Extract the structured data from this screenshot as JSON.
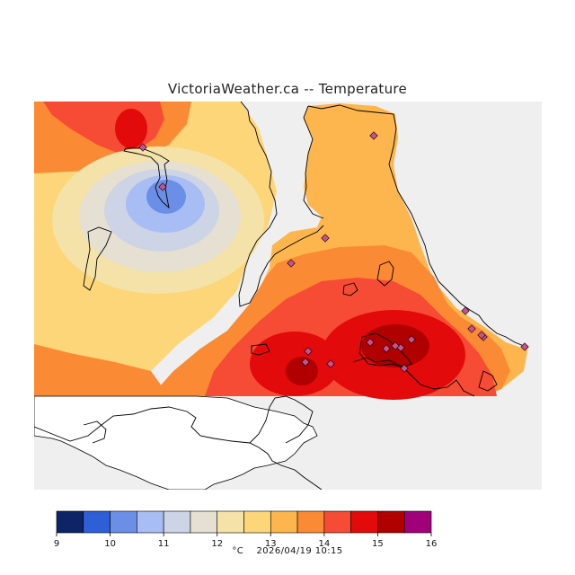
{
  "title": "VictoriaWeather.ca -- Temperature",
  "legend": {
    "unit": "°C",
    "ticks": [
      "9",
      "10",
      "11",
      "12",
      "13",
      "14",
      "15",
      "16"
    ],
    "bins": [
      {
        "from": 9.0,
        "to": 9.5,
        "color": "#0d2466"
      },
      {
        "from": 9.5,
        "to": 10.0,
        "color": "#2f5fd6"
      },
      {
        "from": 10.0,
        "to": 10.5,
        "color": "#6b8fe6"
      },
      {
        "from": 10.5,
        "to": 11.0,
        "color": "#a8bdf4"
      },
      {
        "from": 11.0,
        "to": 11.5,
        "color": "#cdd4e6"
      },
      {
        "from": 11.5,
        "to": 12.0,
        "color": "#e6e0d2"
      },
      {
        "from": 12.0,
        "to": 12.5,
        "color": "#f4e2a8"
      },
      {
        "from": 12.5,
        "to": 13.0,
        "color": "#fdd67a"
      },
      {
        "from": 13.0,
        "to": 13.5,
        "color": "#fdb64d"
      },
      {
        "from": 13.5,
        "to": 14.0,
        "color": "#fb8a34"
      },
      {
        "from": 14.0,
        "to": 14.5,
        "color": "#f64b34"
      },
      {
        "from": 14.5,
        "to": 15.0,
        "color": "#e20a0a"
      },
      {
        "from": 15.0,
        "to": 15.5,
        "color": "#b00000"
      },
      {
        "from": 15.5,
        "to": 16.0,
        "color": "#a0007a"
      }
    ]
  },
  "timestamp": "2026/04/19 10:15",
  "colors": {
    "land_outside": "#efefef",
    "water": "#ffffff",
    "coast": "#000000",
    "station_marker": "#c8508c"
  }
}
